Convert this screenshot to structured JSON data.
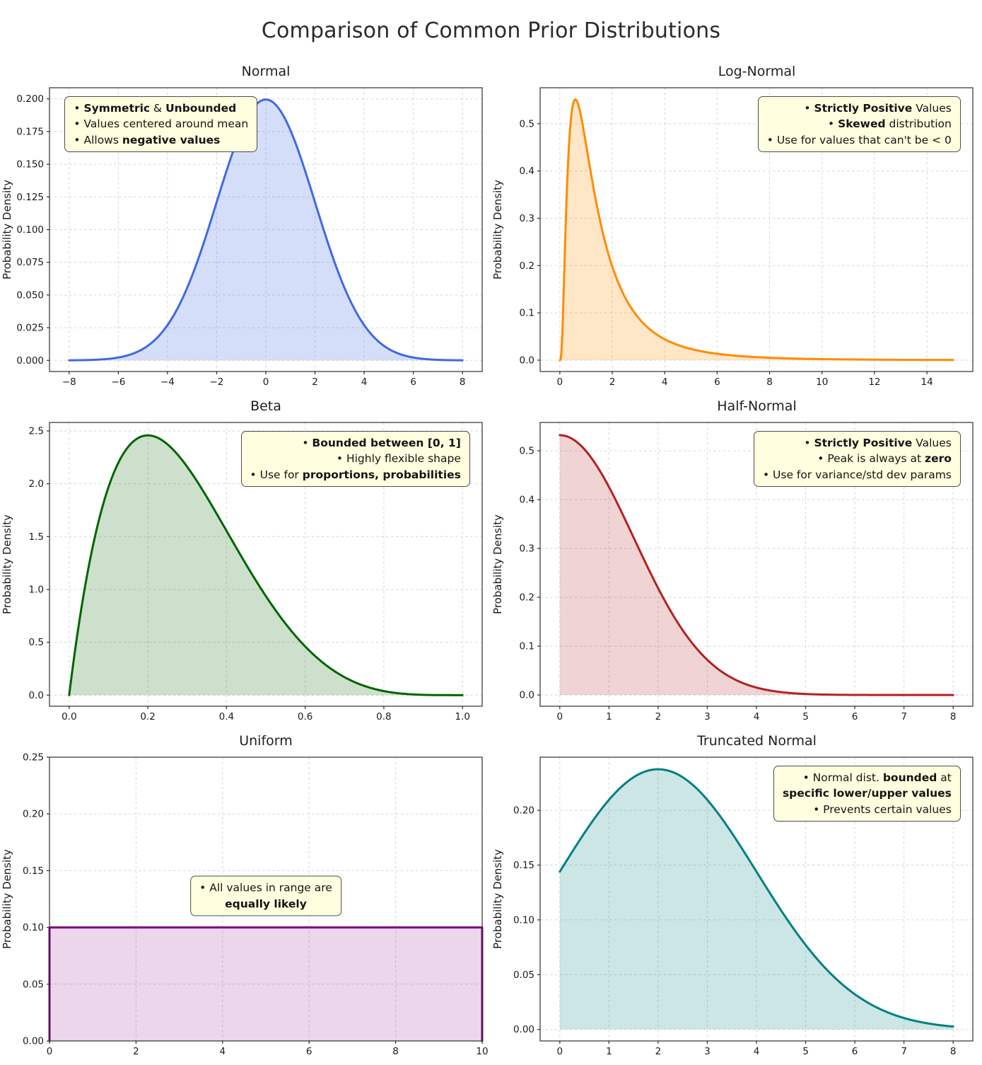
{
  "page_title": "Comparison of Common Prior Distributions",
  "chart_data": {
    "type": "line",
    "grid": "dashed",
    "legend": "none",
    "charts": [
      {
        "title": "Normal",
        "ylabel": "Probability Density",
        "dist": "normal",
        "params": {
          "mu": 0,
          "sigma": 2
        },
        "line_color": "#4169e1",
        "fill_color": "rgba(65,105,225,0.22)",
        "xlim": [
          -8.8,
          8.8
        ],
        "ylim": [
          -0.0085,
          0.2085
        ],
        "x_domain": [
          -8,
          8
        ],
        "x_ticks": {
          "values": [
            -8,
            -6,
            -4,
            -2,
            0,
            2,
            4,
            6,
            8
          ],
          "decimals": 0
        },
        "y_ticks": {
          "values": [
            0,
            0.025,
            0.05,
            0.075,
            0.1,
            0.125,
            0.15,
            0.175,
            0.2
          ],
          "decimals": 3
        },
        "key_points": [
          [
            -8,
            0.0001
          ],
          [
            -6,
            0.0022
          ],
          [
            -4,
            0.027
          ],
          [
            -2,
            0.121
          ],
          [
            0,
            0.1995
          ],
          [
            2,
            0.121
          ],
          [
            4,
            0.027
          ],
          [
            6,
            0.0022
          ],
          [
            8,
            0.0001
          ]
        ],
        "annotation": {
          "anchor": "top-left",
          "align": "left",
          "lines": [
            [
              {
                "t": "• ",
                "b": false
              },
              {
                "t": "Symmetric",
                "b": true
              },
              {
                "t": " & ",
                "b": false
              },
              {
                "t": "Unbounded",
                "b": true
              }
            ],
            [
              {
                "t": "• Values centered around mean",
                "b": false
              }
            ],
            [
              {
                "t": "• Allows ",
                "b": false
              },
              {
                "t": "negative values",
                "b": true
              }
            ]
          ]
        }
      },
      {
        "title": "Log-Normal",
        "ylabel": "Probability Density",
        "dist": "lognormal",
        "params": {
          "mu": 0.2,
          "sigma": 0.85
        },
        "line_color": "#ff8c00",
        "fill_color": "rgba(255,140,0,0.22)",
        "xlim": [
          -0.75,
          15.75
        ],
        "ylim": [
          -0.024,
          0.576
        ],
        "x_domain": [
          0,
          15
        ],
        "x_ticks": {
          "values": [
            0,
            2,
            4,
            6,
            8,
            10,
            12,
            14
          ],
          "decimals": 0
        },
        "y_ticks": {
          "values": [
            0,
            0.1,
            0.2,
            0.3,
            0.4,
            0.5
          ],
          "decimals": 1
        },
        "key_points": [
          [
            0,
            0
          ],
          [
            0.25,
            0.329
          ],
          [
            0.59,
            0.552
          ],
          [
            1,
            0.456
          ],
          [
            2,
            0.198
          ],
          [
            3,
            0.089
          ],
          [
            4,
            0.044
          ],
          [
            6,
            0.014
          ],
          [
            8,
            0.005
          ],
          [
            10,
            0.002
          ],
          [
            15,
            0.0004
          ]
        ],
        "annotation": {
          "anchor": "top-right",
          "align": "right",
          "lines": [
            [
              {
                "t": "• ",
                "b": false
              },
              {
                "t": "Strictly Positive",
                "b": true
              },
              {
                "t": " Values",
                "b": false
              }
            ],
            [
              {
                "t": "• ",
                "b": false
              },
              {
                "t": "Skewed",
                "b": true
              },
              {
                "t": " distribution",
                "b": false
              }
            ],
            [
              {
                "t": "• Use for values that can't be < 0",
                "b": false
              }
            ]
          ]
        }
      },
      {
        "title": "Beta",
        "ylabel": "Probability Density",
        "dist": "beta",
        "params": {
          "a": 2,
          "b": 5,
          "norm_const": 30
        },
        "line_color": "#006400",
        "fill_color": "rgba(0,100,0,0.2)",
        "xlim": [
          -0.05,
          1.05
        ],
        "ylim": [
          -0.105,
          2.58
        ],
        "x_domain": [
          0,
          1
        ],
        "x_ticks": {
          "values": [
            0,
            0.2,
            0.4,
            0.6,
            0.8,
            1.0
          ],
          "decimals": 1
        },
        "y_ticks": {
          "values": [
            0,
            0.5,
            1.0,
            1.5,
            2.0,
            2.5
          ],
          "decimals": 1
        },
        "key_points": [
          [
            0,
            0
          ],
          [
            0.1,
            1.968
          ],
          [
            0.2,
            2.458
          ],
          [
            0.3,
            2.161
          ],
          [
            0.4,
            1.555
          ],
          [
            0.5,
            0.938
          ],
          [
            0.6,
            0.461
          ],
          [
            0.7,
            0.17
          ],
          [
            0.8,
            0.038
          ],
          [
            0.9,
            0.003
          ],
          [
            1,
            0
          ]
        ],
        "annotation": {
          "anchor": "top-right",
          "align": "right",
          "lines": [
            [
              {
                "t": "• ",
                "b": false
              },
              {
                "t": "Bounded between [0, 1]",
                "b": true
              }
            ],
            [
              {
                "t": "• Highly flexible shape",
                "b": false
              }
            ],
            [
              {
                "t": "• Use for ",
                "b": false
              },
              {
                "t": "proportions, probabilities",
                "b": true
              }
            ]
          ]
        }
      },
      {
        "title": "Half-Normal",
        "ylabel": "Probability Density",
        "dist": "halfnormal",
        "params": {
          "sigma": 1.5
        },
        "line_color": "#b22222",
        "fill_color": "rgba(178,34,34,0.2)",
        "xlim": [
          -0.4,
          8.4
        ],
        "ylim": [
          -0.023,
          0.558
        ],
        "x_domain": [
          0,
          8
        ],
        "x_ticks": {
          "values": [
            0,
            1,
            2,
            3,
            4,
            5,
            6,
            7,
            8
          ],
          "decimals": 0
        },
        "y_ticks": {
          "values": [
            0,
            0.1,
            0.2,
            0.3,
            0.4,
            0.5
          ],
          "decimals": 1
        },
        "key_points": [
          [
            0,
            0.532
          ],
          [
            0.5,
            0.503
          ],
          [
            1,
            0.426
          ],
          [
            1.5,
            0.323
          ],
          [
            2,
            0.219
          ],
          [
            2.5,
            0.133
          ],
          [
            3,
            0.072
          ],
          [
            4,
            0.0152
          ],
          [
            5,
            0.0021
          ],
          [
            6,
            0.0002
          ],
          [
            8,
            0
          ]
        ],
        "annotation": {
          "anchor": "top-right",
          "align": "right",
          "lines": [
            [
              {
                "t": "• ",
                "b": false
              },
              {
                "t": "Strictly Positive",
                "b": true
              },
              {
                "t": " Values",
                "b": false
              }
            ],
            [
              {
                "t": "• Peak is always at ",
                "b": false
              },
              {
                "t": "zero",
                "b": true
              }
            ],
            [
              {
                "t": "• Use for variance/std dev params",
                "b": false
              }
            ]
          ]
        }
      },
      {
        "title": "Uniform",
        "ylabel": "Probability Density",
        "dist": "uniform",
        "params": {
          "a": 0,
          "b": 10
        },
        "line_color": "#800080",
        "fill_color": "rgba(128,0,128,0.16)",
        "xlim": [
          0,
          10
        ],
        "ylim": [
          0,
          0.25
        ],
        "x_domain": [
          0,
          10
        ],
        "x_ticks": {
          "values": [
            0,
            2,
            4,
            6,
            8,
            10
          ],
          "decimals": 0
        },
        "y_ticks": {
          "values": [
            0,
            0.05,
            0.1,
            0.15,
            0.2,
            0.25
          ],
          "decimals": 2
        },
        "key_points": [
          [
            0,
            0.1
          ],
          [
            10,
            0.1
          ]
        ],
        "annotation": {
          "anchor": "center",
          "align": "center",
          "lines": [
            [
              {
                "t": "• All values in range are",
                "b": false
              }
            ],
            [
              {
                "t": "equally likely",
                "b": true
              }
            ]
          ]
        }
      },
      {
        "title": "Truncated Normal",
        "ylabel": "Probability Density",
        "dist": "truncnormal",
        "params": {
          "mu": 2,
          "sigma": 2,
          "lo": 0,
          "hi": 8,
          "norm_const": 0.84
        },
        "line_color": "#008080",
        "fill_color": "rgba(0,128,128,0.2)",
        "xlim": [
          -0.4,
          8.4
        ],
        "ylim": [
          -0.0105,
          0.2485
        ],
        "x_domain": [
          0,
          8
        ],
        "x_ticks": {
          "values": [
            0,
            1,
            2,
            3,
            4,
            5,
            6,
            7,
            8
          ],
          "decimals": 0
        },
        "y_ticks": {
          "values": [
            0,
            0.05,
            0.1,
            0.15,
            0.2
          ],
          "decimals": 2
        },
        "key_points": [
          [
            0,
            0.144
          ],
          [
            1,
            0.21
          ],
          [
            2,
            0.2375
          ],
          [
            3,
            0.21
          ],
          [
            4,
            0.144
          ],
          [
            5,
            0.077
          ],
          [
            6,
            0.032
          ],
          [
            7,
            0.0104
          ],
          [
            8,
            0.0026
          ]
        ],
        "annotation": {
          "anchor": "top-right",
          "align": "right",
          "lines": [
            [
              {
                "t": "• Normal dist. ",
                "b": false
              },
              {
                "t": "bounded",
                "b": true
              },
              {
                "t": " at",
                "b": false
              }
            ],
            [
              {
                "t": "specific lower/upper values",
                "b": true
              }
            ],
            [
              {
                "t": "• Prevents certain values",
                "b": false
              }
            ]
          ]
        }
      }
    ]
  }
}
